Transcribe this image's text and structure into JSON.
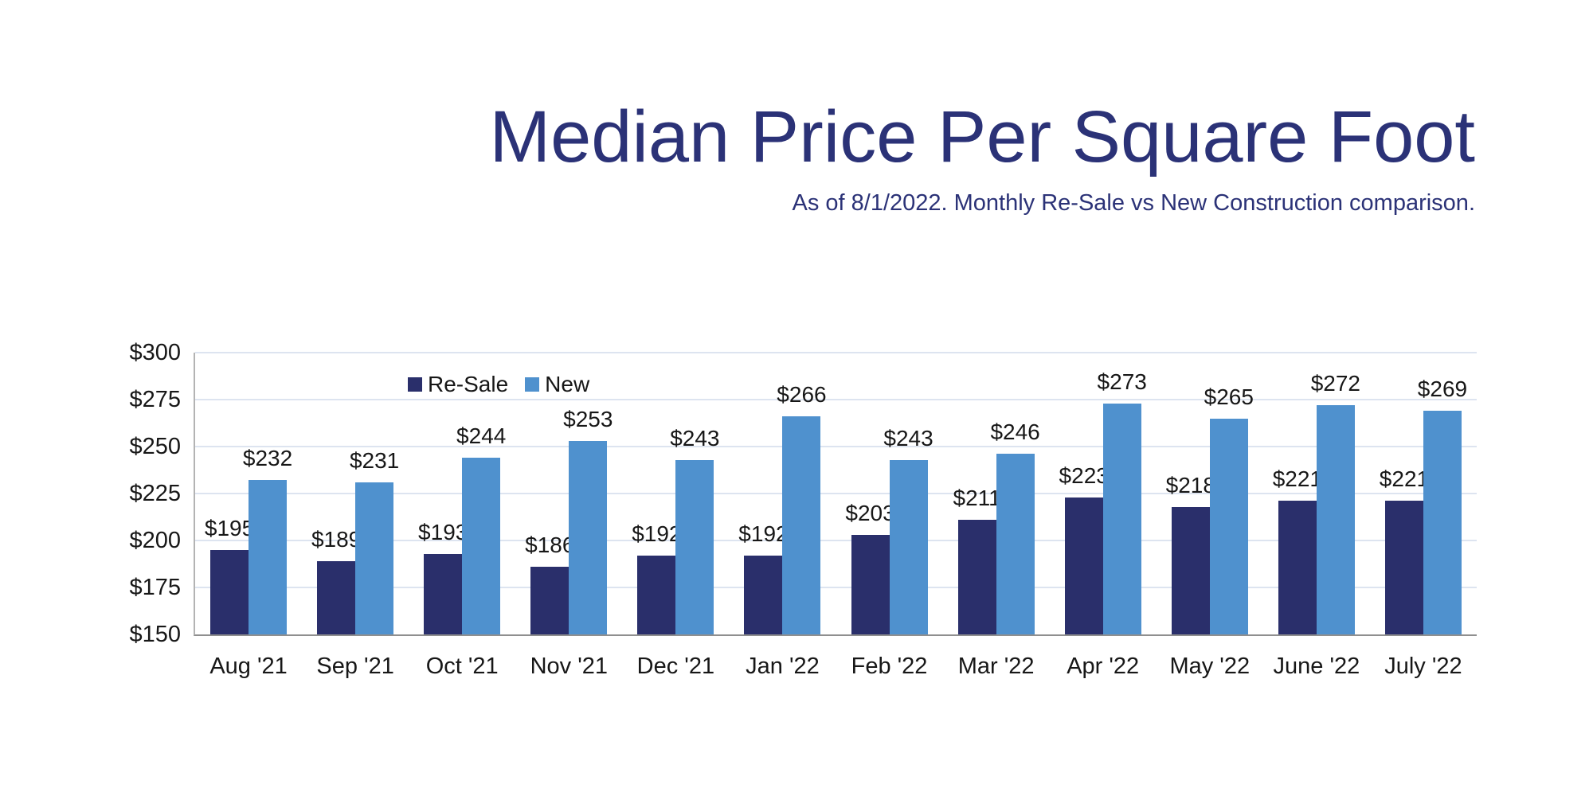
{
  "title": "Median Price Per Square Foot",
  "subtitle": "As of 8/1/2022. Monthly Re-Sale vs New Construction comparison.",
  "colors": {
    "title_text": "#2B3277",
    "resale_bar": "#2A2F6B",
    "new_bar": "#4F91CE",
    "gridline": "#dde4f0",
    "axis_line": "#8f8f8f",
    "label_text": "#171717"
  },
  "chart_data": {
    "type": "bar",
    "title": "Median Price Per Square Foot",
    "subtitle": "As of 8/1/2022. Monthly Re-Sale vs New Construction comparison.",
    "categories": [
      "Aug '21",
      "Sep '21",
      "Oct '21",
      "Nov '21",
      "Dec '21",
      "Jan '22",
      "Feb '22",
      "Mar '22",
      "Apr '22",
      "May '22",
      "June '22",
      "July '22"
    ],
    "series": [
      {
        "name": "Re-Sale",
        "color": "#2A2F6B",
        "values": [
          195,
          189,
          193,
          186,
          192,
          192,
          203,
          211,
          223,
          218,
          221,
          221
        ]
      },
      {
        "name": "New",
        "color": "#4F91CE",
        "values": [
          232,
          231,
          244,
          253,
          243,
          266,
          243,
          246,
          273,
          265,
          272,
          269
        ]
      }
    ],
    "xlabel": "",
    "ylabel": "",
    "ylim": [
      150,
      300
    ],
    "y_tick_step": 25,
    "y_tick_labels": [
      "$300",
      "$275",
      "$250",
      "$225",
      "$200",
      "$175",
      "$150"
    ],
    "value_prefix": "$",
    "data_labels": "outside-end",
    "grid": "horizontal",
    "legend_position": "inside-top-left"
  }
}
